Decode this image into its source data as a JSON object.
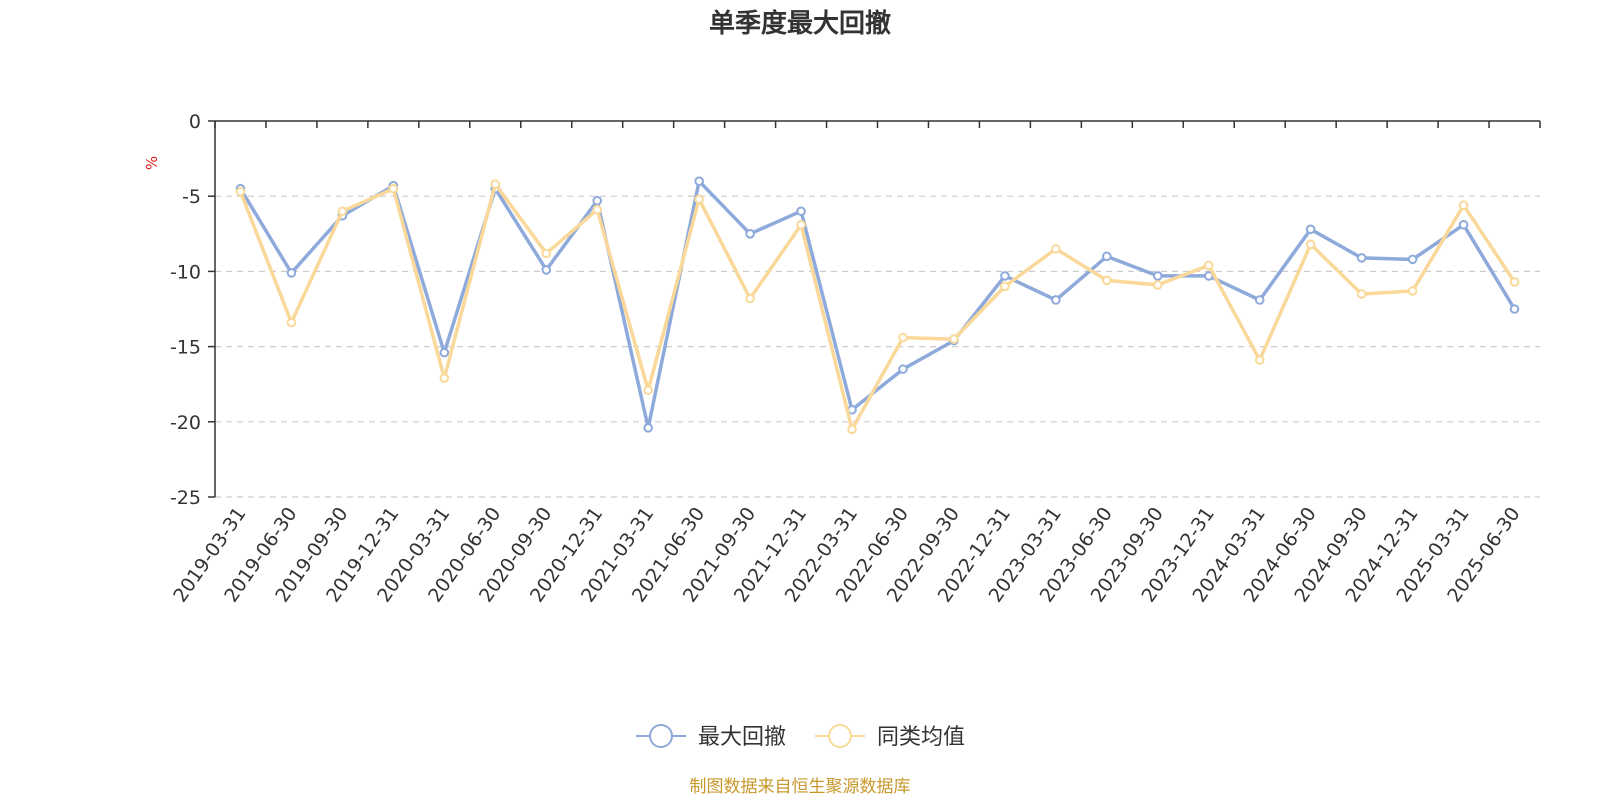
{
  "chart_data": {
    "type": "line",
    "title": "单季度最大回撤",
    "ylabel": "%",
    "ylim": [
      -25,
      0
    ],
    "yticks": [
      0,
      -5,
      -10,
      -15,
      -20,
      -25
    ],
    "grid": true,
    "legend_position": "bottom-center",
    "categories": [
      "2019-03-31",
      "2019-06-30",
      "2019-09-30",
      "2019-12-31",
      "2020-03-31",
      "2020-06-30",
      "2020-09-30",
      "2020-12-31",
      "2021-03-31",
      "2021-06-30",
      "2021-09-30",
      "2021-12-31",
      "2022-03-31",
      "2022-06-30",
      "2022-09-30",
      "2022-12-31",
      "2023-03-31",
      "2023-06-30",
      "2023-09-30",
      "2023-12-31",
      "2024-03-31",
      "2024-06-30",
      "2024-09-30",
      "2024-12-31",
      "2025-03-31",
      "2025-06-30"
    ],
    "series": [
      {
        "name": "最大回撤",
        "color": "#8eaadb",
        "values": [
          -4.5,
          -10.1,
          -6.3,
          -4.3,
          -15.4,
          -4.5,
          -9.9,
          -5.3,
          -20.4,
          -4.0,
          -7.5,
          -6.0,
          -19.2,
          -16.5,
          -14.6,
          -10.3,
          -11.9,
          -9.0,
          -10.3,
          -10.3,
          -11.9,
          -7.2,
          -9.1,
          -9.2,
          -6.9,
          -12.5
        ]
      },
      {
        "name": "同类均值",
        "color": "#f9d89a",
        "values": [
          -4.7,
          -13.4,
          -6.0,
          -4.5,
          -17.1,
          -4.2,
          -8.8,
          -5.9,
          -17.9,
          -5.2,
          -11.8,
          -6.9,
          -20.5,
          -14.4,
          -14.5,
          -11.0,
          -8.5,
          -10.6,
          -10.9,
          -9.6,
          -15.9,
          -8.2,
          -11.5,
          -11.3,
          -5.6,
          -10.7
        ]
      }
    ]
  },
  "footer": {
    "source": "制图数据来自恒生聚源数据库",
    "source_color": "#c8982b"
  },
  "colors": {
    "axis": "#333333",
    "grid": "#cccccc",
    "unit": "#e02020"
  }
}
